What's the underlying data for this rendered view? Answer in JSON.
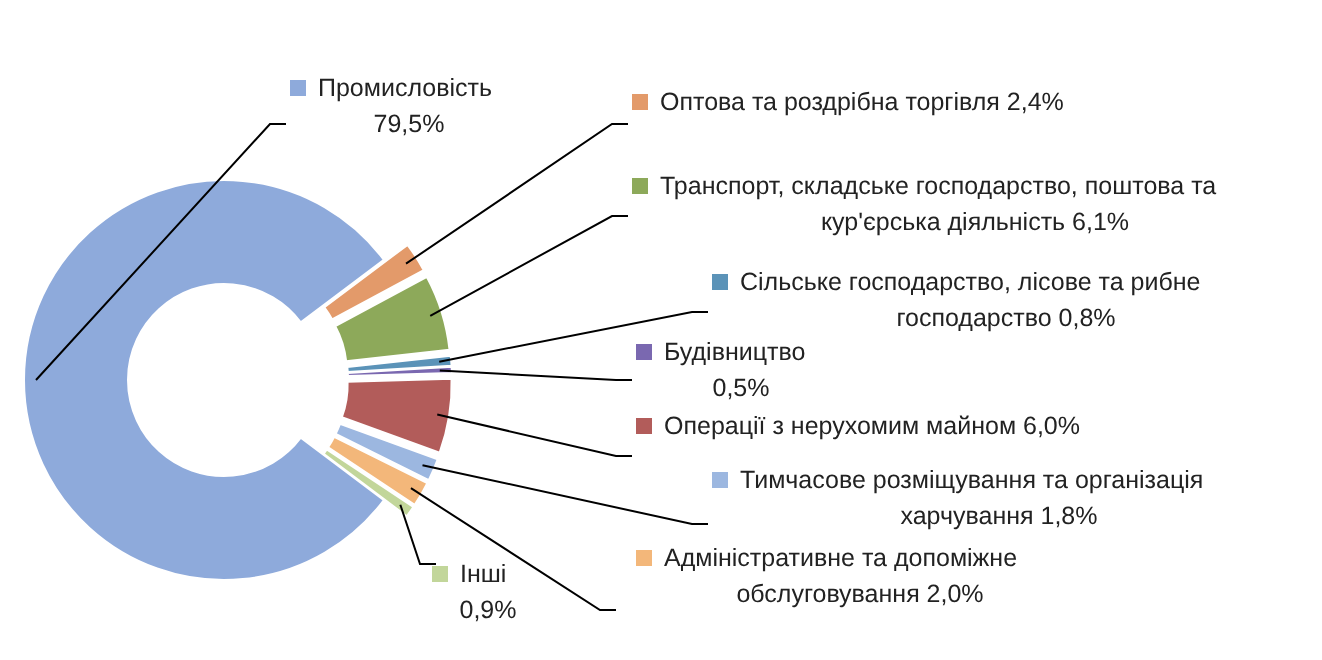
{
  "chart_data": {
    "type": "donut",
    "categories": [
      "Промисловість",
      "Оптова та роздрібна торгівля",
      "Транспорт, складське господарство, поштова та кур'єрська діяльність ",
      "Сільське господарство, лісове та рибне господарство",
      "Будівництво",
      "Операції з нерухомим майном ",
      "Тимчасове розміщування та організація харчування",
      "Адміністративне та допоміжне обслуговування",
      "Інші"
    ],
    "values": [
      79.5,
      2.4,
      6.1,
      0.8,
      0.5,
      6.0,
      1.8,
      2.0,
      0.9
    ],
    "value_labels": [
      "79,5%",
      "2,4%",
      "6,1%",
      "0,8%",
      "0,5%",
      "6,0%",
      "1,8%",
      "2,0%",
      "0,9%"
    ],
    "colors": [
      "#8eaadb",
      "#e39a6a",
      "#8da95a",
      "#5b93b8",
      "#7a68b0",
      "#b25c5a",
      "#9cb7e0",
      "#f3b77a",
      "#c2d69a"
    ],
    "legend": "right"
  }
}
